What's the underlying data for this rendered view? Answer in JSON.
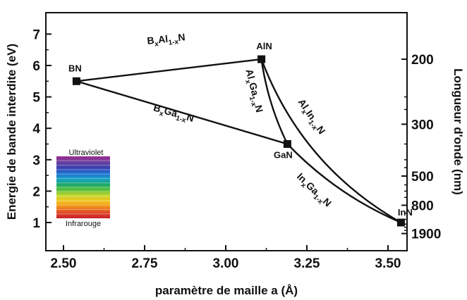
{
  "chart_data": {
    "type": "line",
    "xlabel": "paramètre de maille a (Å)",
    "ylabel": "Energie de bande interdite (eV)",
    "y2label": "Longueur d'onde (nm)",
    "xlim": [
      2.5,
      3.6
    ],
    "ylim": [
      0.5,
      7
    ],
    "grid": false,
    "x_ticks": [
      "2.50",
      "2.75",
      "3.00",
      "3.25",
      "3.50"
    ],
    "y_ticks": [
      "1",
      "2",
      "3",
      "4",
      "5",
      "6",
      "7"
    ],
    "y2_ticks": [
      {
        "label": "200",
        "energy": 6.2
      },
      {
        "label": "300",
        "energy": 4.13
      },
      {
        "label": "500",
        "energy": 2.48
      },
      {
        "label": "800",
        "energy": 1.55
      },
      {
        "label": "1900",
        "energy": 0.65
      }
    ],
    "points": [
      {
        "name": "BN",
        "x": 2.54,
        "y": 5.5
      },
      {
        "name": "AlN",
        "x": 3.11,
        "y": 6.2
      },
      {
        "name": "GaN",
        "x": 3.19,
        "y": 3.5
      },
      {
        "name": "InN",
        "x": 3.54,
        "y": 1.0
      }
    ],
    "curves": [
      {
        "name": "BxAl1-xN",
        "from": "BN",
        "to": "AlN",
        "label_main": "B",
        "label_sub1": "x",
        "label_mid": "Al",
        "label_sub2": "1-x",
        "label_end": "N"
      },
      {
        "name": "BxGa1-xN",
        "from": "BN",
        "to": "GaN",
        "label_main": "B",
        "label_sub1": "x",
        "label_mid": "Ga",
        "label_sub2": "1-x",
        "label_end": "N"
      },
      {
        "name": "AlxGa1-xN",
        "from": "AlN",
        "to": "GaN",
        "label_main": "Al",
        "label_sub1": "x",
        "label_mid": "Ga",
        "label_sub2": "1-x",
        "label_end": "N"
      },
      {
        "name": "AlxIn1-xN",
        "from": "AlN",
        "to": "InN",
        "label_main": "Al",
        "label_sub1": "x",
        "label_mid": "In",
        "label_sub2": "1-x",
        "label_end": "N"
      },
      {
        "name": "InxGa1-xN",
        "from": "GaN",
        "to": "InN",
        "label_main": "In",
        "label_sub1": "x",
        "label_mid": "Ga",
        "label_sub2": "1-x",
        "label_end": "N"
      }
    ],
    "legend": {
      "top_label": "Ultraviolet",
      "bottom_label": "Infrarouge",
      "colors": [
        "#9b2d8e",
        "#6b3fa0",
        "#3b3fb0",
        "#1f6fd0",
        "#16a0c8",
        "#1aa86a",
        "#5cc23a",
        "#c8d62a",
        "#f2c21e",
        "#f08a1a",
        "#e0482a",
        "#c8202a"
      ]
    }
  }
}
